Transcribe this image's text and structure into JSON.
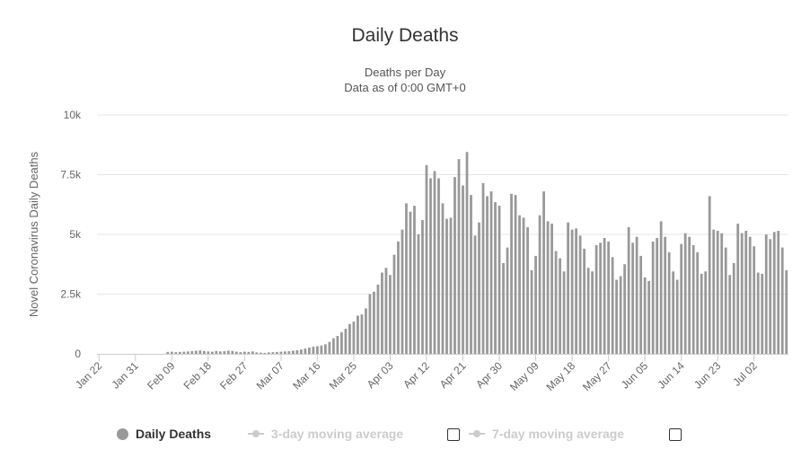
{
  "chart_data": {
    "type": "bar",
    "title": "Daily Deaths",
    "subtitle_lines": [
      "Deaths per Day",
      "Data as of 0:00 GMT+0"
    ],
    "xlabel": "",
    "ylabel": "Novel Coronavirus Daily Deaths",
    "ylim": [
      0,
      10000
    ],
    "y_ticks": [
      {
        "value": 0,
        "label": "0"
      },
      {
        "value": 2500,
        "label": "2.5k"
      },
      {
        "value": 5000,
        "label": "5k"
      },
      {
        "value": 7500,
        "label": "7.5k"
      },
      {
        "value": 10000,
        "label": "10k"
      }
    ],
    "x_tick_labels": [
      "Jan 22",
      "Jan 31",
      "Feb 09",
      "Feb 18",
      "Feb 27",
      "Mar 07",
      "Mar 16",
      "Mar 25",
      "Apr 03",
      "Apr 12",
      "Apr 21",
      "Apr 30",
      "May 09",
      "May 18",
      "May 27",
      "Jun 05",
      "Jun 14",
      "Jun 23",
      "Jul 02"
    ],
    "x_tick_every_days": 9,
    "categories_start": "Jan 22",
    "grid": true,
    "legend_position": "bottom",
    "series": [
      {
        "name": "Daily Deaths",
        "color": "#999999",
        "values": [
          0,
          0,
          0,
          0,
          0,
          0,
          0,
          0,
          0,
          0,
          0,
          0,
          0,
          0,
          0,
          0,
          0,
          80,
          90,
          70,
          80,
          90,
          100,
          110,
          130,
          140,
          120,
          100,
          90,
          120,
          100,
          110,
          130,
          120,
          90,
          70,
          90,
          80,
          100,
          60,
          50,
          40,
          60,
          70,
          80,
          90,
          100,
          110,
          130,
          150,
          180,
          220,
          260,
          300,
          320,
          350,
          400,
          500,
          650,
          750,
          900,
          1050,
          1250,
          1350,
          1600,
          1650,
          1900,
          2500,
          2600,
          2900,
          3400,
          3600,
          3300,
          4150,
          4700,
          5200,
          6300,
          5950,
          6200,
          5000,
          5600,
          7900,
          7350,
          7650,
          7350,
          6300,
          5650,
          5700,
          7400,
          8150,
          7050,
          8450,
          6650,
          4950,
          5500,
          7150,
          6600,
          6800,
          6350,
          6200,
          3800,
          4450,
          6700,
          6650,
          5800,
          5700,
          5300,
          3500,
          4100,
          5800,
          6800,
          5550,
          5450,
          4300,
          4000,
          3450,
          5500,
          5200,
          5250,
          4950,
          4400,
          3600,
          3450,
          4550,
          4650,
          4850,
          4700,
          4050,
          3100,
          3250,
          3750,
          5300,
          4650,
          4900,
          4100,
          3200,
          3050,
          4700,
          4850,
          5550,
          4900,
          4250,
          3450,
          3100,
          4600,
          5050,
          4900,
          4550,
          4250,
          3350,
          3450,
          6600,
          5200,
          5150,
          5050,
          4450,
          3300,
          3800,
          5450,
          5050,
          5150,
          4900,
          4500,
          3400,
          3350,
          5000,
          4800,
          5100,
          5150,
          4450,
          3500
        ]
      },
      {
        "name": "3-day moving average",
        "visible": false
      },
      {
        "name": "7-day moving average",
        "visible": false
      }
    ]
  }
}
